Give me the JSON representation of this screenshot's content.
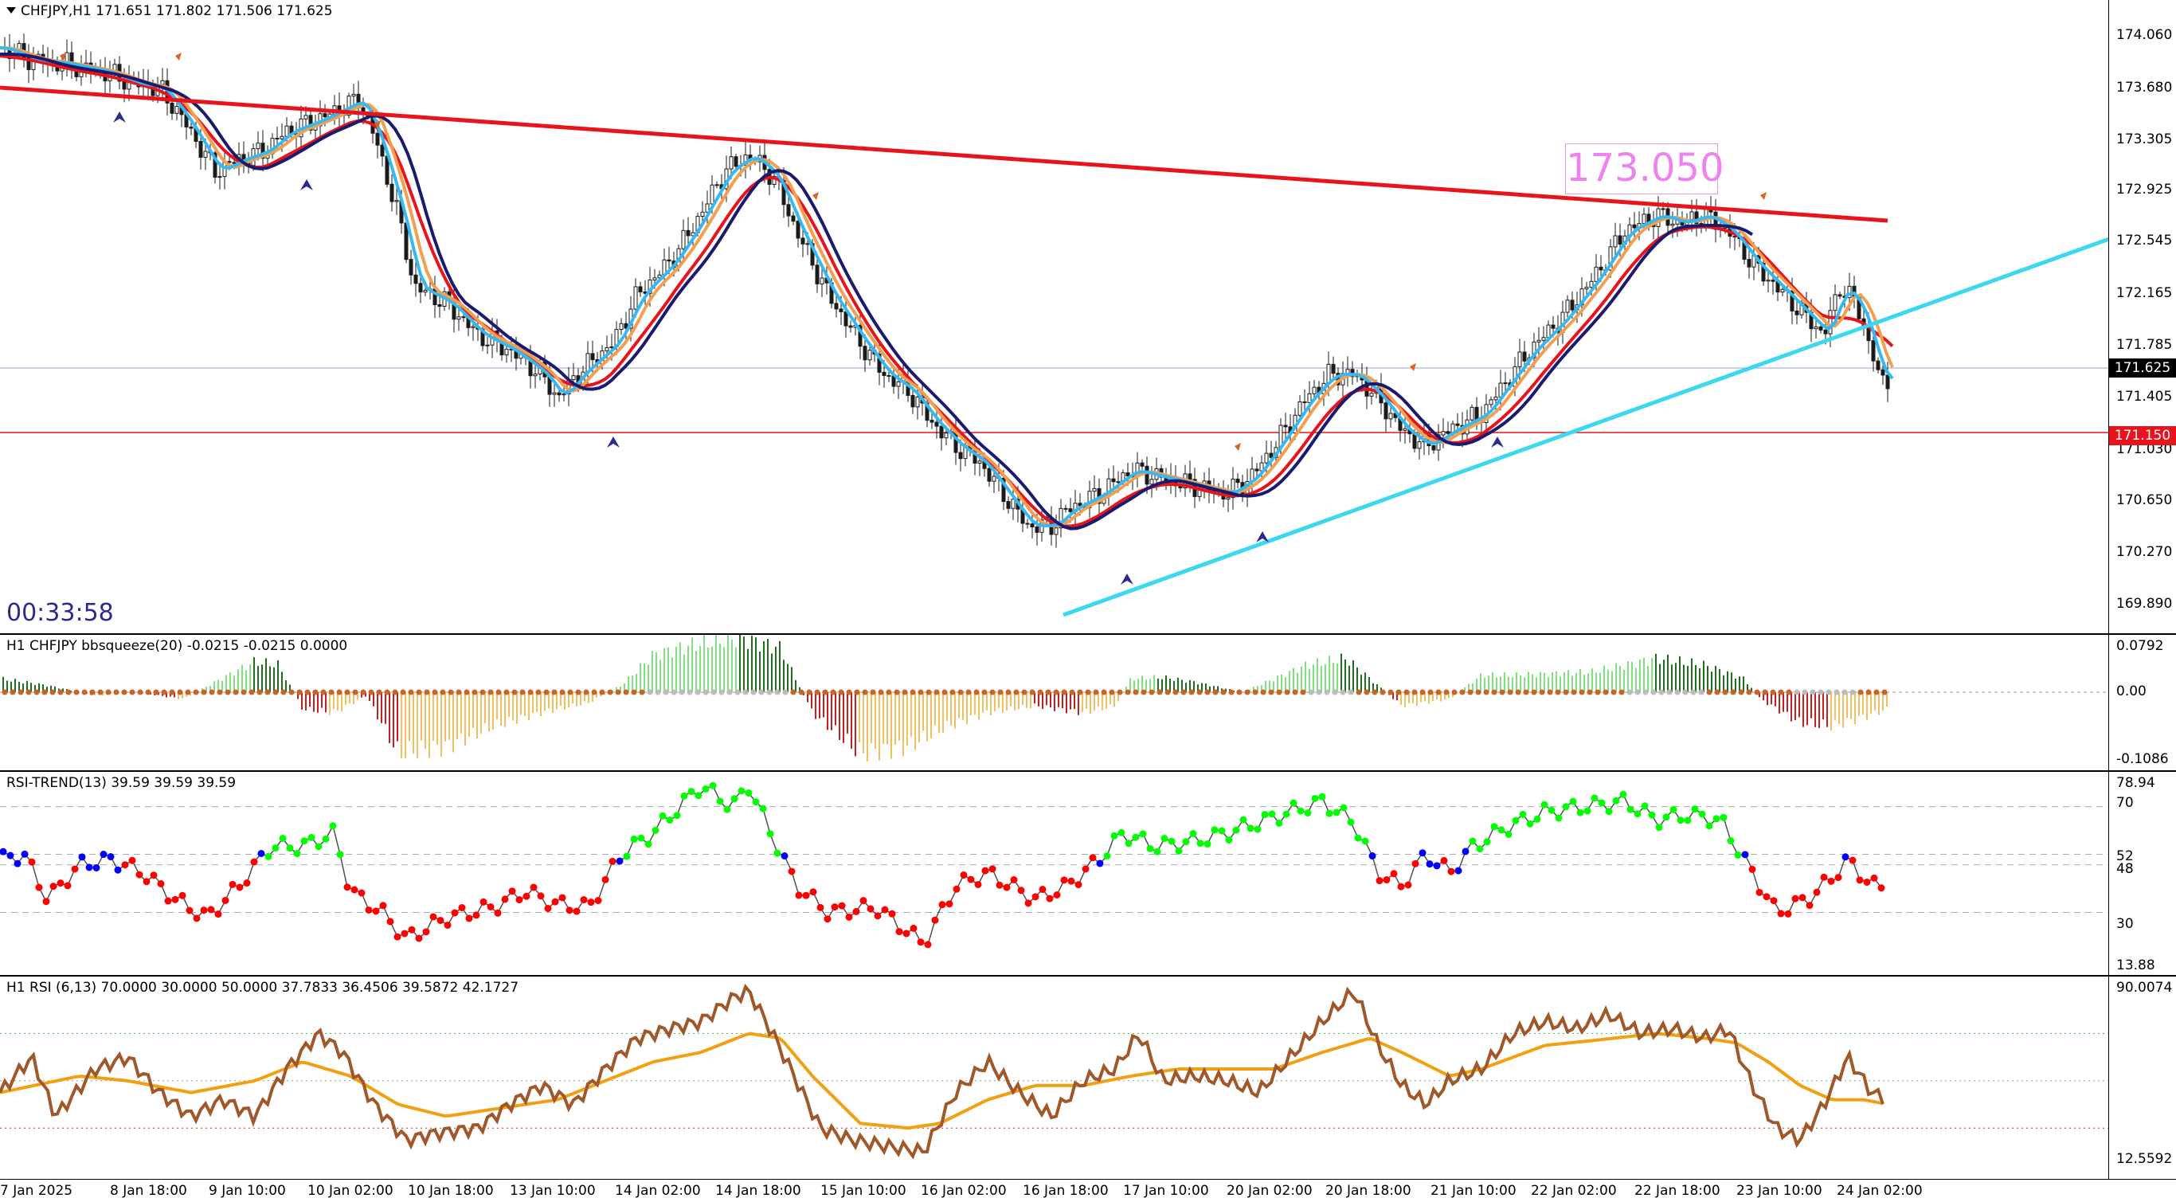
{
  "main_chart": {
    "title": "CHFJPY,H1  171.651 171.802 171.506 171.625",
    "timer": "00:33:58",
    "highlight_label": "173.050",
    "price_labels": [
      "174.060",
      "173.680",
      "173.305",
      "172.925",
      "172.545",
      "172.165",
      "171.785",
      "171.405",
      "171.030",
      "170.650",
      "170.270",
      "169.890"
    ],
    "price_badge": "171.625",
    "level_badge": "171.150",
    "colors": {
      "bull": "#1a1a1a",
      "bear": "#1a1a1a",
      "sma_red": "#e8141c",
      "ema_blue": "#38b8ee",
      "ema_orange": "#f0a050",
      "ema_navy": "#1a1a6e",
      "trendline": "#3cd8f0",
      "level_line": "#e8141c",
      "price_line": "#9aa0c8"
    }
  },
  "bbsqueeze": {
    "title": "H1 CHFJPY bbsqueeze(20) -0.0215 -0.0215 0.0000",
    "labels": [
      "0.0792",
      "0.00",
      "-0.1086"
    ],
    "colors": {
      "pos_dark": "#1e6e1e",
      "pos_light": "#7ee07e",
      "neg_dark": "#c81e1e",
      "neg_light": "#f0c060",
      "dots": "#c86428"
    }
  },
  "rsi_trend": {
    "title": "RSI-TREND(13) 39.59 39.59 39.59",
    "labels": [
      "78.94",
      "70",
      "52",
      "48",
      "30",
      "13.88"
    ],
    "colors": {
      "up": "#00ff00",
      "down": "#ff0000",
      "neutral": "#0000ff",
      "line": "#505050"
    }
  },
  "rsi": {
    "title": "H1 RSI  (6,13) 70.0000 30.0000 50.0000 37.7833 36.4506 39.5872 42.1727",
    "labels": [
      "90.0074",
      "12.5592"
    ],
    "colors": {
      "fast": "#a0582a",
      "slow": "#f0a010",
      "level_high": "#4caf50",
      "level_low": "#d32f2f"
    }
  },
  "time_axis": {
    "labels": [
      "7 Jan 2025",
      "8 Jan 18:00",
      "9 Jan 10:00",
      "10 Jan 02:00",
      "10 Jan 18:00",
      "13 Jan 10:00",
      "14 Jan 02:00",
      "14 Jan 18:00",
      "15 Jan 10:00",
      "16 Jan 02:00",
      "16 Jan 18:00",
      "17 Jan 10:00",
      "20 Jan 02:00",
      "20 Jan 18:00",
      "21 Jan 10:00",
      "22 Jan 02:00",
      "22 Jan 18:00",
      "23 Jan 10:00",
      "24 Jan 02:00"
    ]
  }
}
